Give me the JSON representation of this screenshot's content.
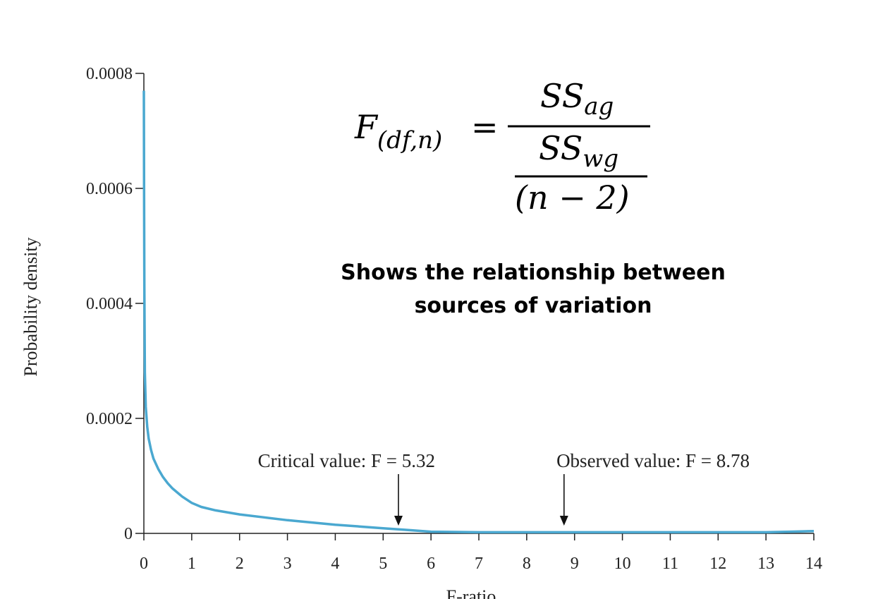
{
  "chart_data": {
    "type": "line",
    "title": "",
    "xlabel": "F-ratio",
    "ylabel": "Probability density",
    "xlim": [
      0,
      14
    ],
    "ylim": [
      0,
      0.0008
    ],
    "x_ticks": [
      "0",
      "1",
      "2",
      "3",
      "4",
      "5",
      "6",
      "7",
      "8",
      "9",
      "10",
      "11",
      "12",
      "13",
      "14"
    ],
    "y_ticks": [
      {
        "value": 0,
        "label": "0"
      },
      {
        "value": 0.0002,
        "label": "0.0002"
      },
      {
        "value": 0.0004,
        "label": "0.0004"
      },
      {
        "value": 0.0006,
        "label": "0.0006"
      },
      {
        "value": 0.0008,
        "label": "0.0008"
      }
    ],
    "grid": false,
    "series": [
      {
        "color": "#4aa8d0",
        "x": [
          0.0,
          0.005,
          0.01,
          0.02,
          0.04,
          0.07,
          0.1,
          0.15,
          0.2,
          0.3,
          0.4,
          0.5,
          0.6,
          0.8,
          1.0,
          1.2,
          1.5,
          2.0,
          2.5,
          3.0,
          3.5,
          4.0,
          4.5,
          5.0,
          5.5,
          6.0,
          7.0,
          8.0,
          9.0,
          10.0,
          11.0,
          12.0,
          13.0,
          13.5,
          14.0
        ],
        "y": [
          0.00077,
          0.0006,
          0.00043,
          0.00028,
          0.00022,
          0.000185,
          0.000165,
          0.000145,
          0.00013,
          0.000112,
          9.8e-05,
          8.7e-05,
          7.8e-05,
          6.4e-05,
          5.3e-05,
          4.6e-05,
          4e-05,
          3.3e-05,
          2.8e-05,
          2.3e-05,
          1.9e-05,
          1.5e-05,
          1.2e-05,
          9e-06,
          6e-06,
          3e-06,
          2e-06,
          2e-06,
          2e-06,
          2e-06,
          2e-06,
          2e-06,
          2e-06,
          3e-06,
          4e-06
        ]
      }
    ],
    "annotations": [
      {
        "text": "Critical value: F = 5.32",
        "x": 5.32
      },
      {
        "text": "Observed value: F = 8.78",
        "x": 8.78
      }
    ]
  },
  "formula": {
    "lhs_main": "F",
    "lhs_sub": "(df,n)",
    "equals": "=",
    "num_main": "SS",
    "num_sub": "ag",
    "den_main": "SS",
    "den_sub": "wg",
    "den_den": "(n  − 2)"
  },
  "caption": {
    "line1": "Shows the relationship between",
    "line2": "sources of variation"
  }
}
